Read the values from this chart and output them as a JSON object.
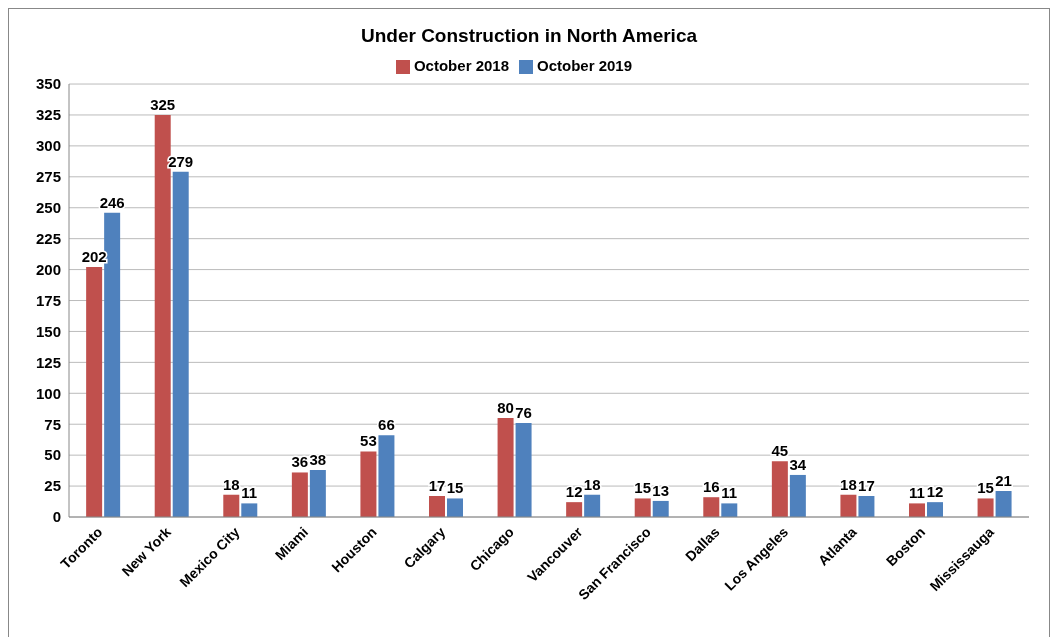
{
  "chart_data": {
    "type": "bar",
    "title": "Under Construction in North America",
    "categories": [
      "Toronto",
      "New York",
      "Mexico City",
      "Miami",
      "Houston",
      "Calgary",
      "Chicago",
      "Vancouver",
      "San Francisco",
      "Dallas",
      "Los Angeles",
      "Atlanta",
      "Boston",
      "Mississauga"
    ],
    "series": [
      {
        "name": "October 2018",
        "color": "#c0504d",
        "values": [
          202,
          325,
          18,
          36,
          53,
          17,
          80,
          12,
          15,
          16,
          45,
          18,
          11,
          15
        ]
      },
      {
        "name": "October 2019",
        "color": "#4f81bd",
        "values": [
          246,
          279,
          11,
          38,
          66,
          15,
          76,
          18,
          13,
          11,
          34,
          17,
          12,
          21
        ]
      }
    ],
    "ylim": [
      0,
      350
    ],
    "yticks": [
      0,
      25,
      50,
      75,
      100,
      125,
      150,
      175,
      200,
      225,
      250,
      275,
      300,
      325,
      350
    ],
    "grid": "y",
    "legend": "top",
    "data_labels": true
  }
}
